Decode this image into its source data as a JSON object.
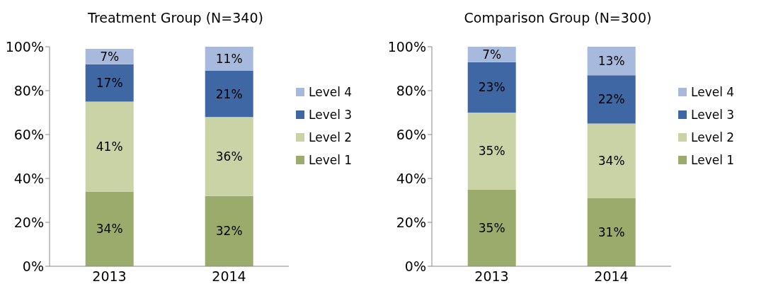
{
  "chart_data": [
    {
      "type": "bar",
      "title": "Treatment Group (N=340)",
      "categories": [
        "2013",
        "2014"
      ],
      "stacked": true,
      "ylim": [
        0,
        100
      ],
      "yticks": [
        {
          "value": 0,
          "label": "0%"
        },
        {
          "value": 20,
          "label": "20%"
        },
        {
          "value": 40,
          "label": "40%"
        },
        {
          "value": 60,
          "label": "60%"
        },
        {
          "value": 80,
          "label": "80%"
        },
        {
          "value": 100,
          "label": "100%"
        }
      ],
      "legend": "right",
      "grid": false,
      "series": [
        {
          "name": "Level 1",
          "color": "#9bab6b",
          "values": [
            34,
            32
          ],
          "value_labels": [
            "34%",
            "32%"
          ]
        },
        {
          "name": "Level 2",
          "color": "#c9d3a5",
          "values": [
            41,
            36
          ],
          "value_labels": [
            "41%",
            "36%"
          ]
        },
        {
          "name": "Level 3",
          "color": "#3f67a3",
          "values": [
            17,
            21
          ],
          "value_labels": [
            "17%",
            "21%"
          ]
        },
        {
          "name": "Level 4",
          "color": "#a7b9dc",
          "values": [
            7,
            11
          ],
          "value_labels": [
            "7%",
            "11%"
          ]
        }
      ]
    },
    {
      "type": "bar",
      "title": "Comparison Group (N=300)",
      "categories": [
        "2013",
        "2014"
      ],
      "stacked": true,
      "ylim": [
        0,
        100
      ],
      "yticks": [
        {
          "value": 0,
          "label": "0%"
        },
        {
          "value": 20,
          "label": "20%"
        },
        {
          "value": 40,
          "label": "40%"
        },
        {
          "value": 60,
          "label": "60%"
        },
        {
          "value": 80,
          "label": "80%"
        },
        {
          "value": 100,
          "label": "100%"
        }
      ],
      "legend": "right",
      "grid": false,
      "series": [
        {
          "name": "Level 1",
          "color": "#9bab6b",
          "values": [
            35,
            31
          ],
          "value_labels": [
            "35%",
            "31%"
          ]
        },
        {
          "name": "Level 2",
          "color": "#c9d3a5",
          "values": [
            35,
            34
          ],
          "value_labels": [
            "35%",
            "34%"
          ]
        },
        {
          "name": "Level 3",
          "color": "#3f67a3",
          "values": [
            23,
            22
          ],
          "value_labels": [
            "23%",
            "22%"
          ]
        },
        {
          "name": "Level 4",
          "color": "#a7b9dc",
          "values": [
            7,
            13
          ],
          "value_labels": [
            "7%",
            "13%"
          ]
        }
      ]
    }
  ]
}
